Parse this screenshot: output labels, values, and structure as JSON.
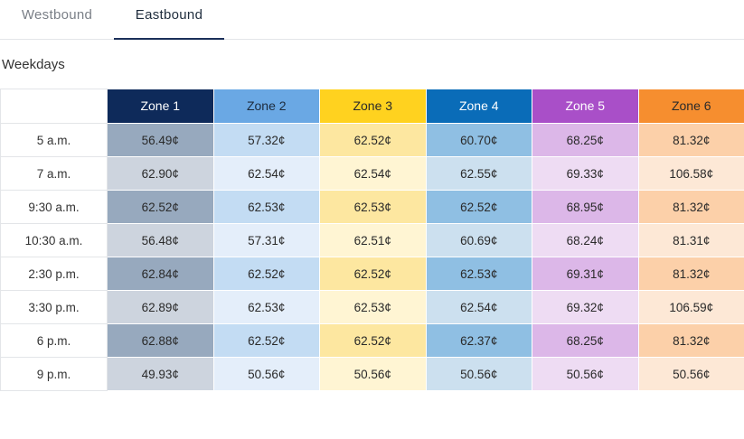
{
  "tabs": [
    {
      "label": "Westbound",
      "active": false
    },
    {
      "label": "Eastbound",
      "active": true
    }
  ],
  "section": {
    "title": "Weekdays"
  },
  "table": {
    "zones": [
      "Zone 1",
      "Zone 2",
      "Zone 3",
      "Zone 4",
      "Zone 5",
      "Zone 6"
    ],
    "zone_colors": [
      "#0e2a5a",
      "#6aa8e4",
      "#ffd21f",
      "#0a6cb8",
      "#a94fc8",
      "#f68e2f"
    ],
    "rows": [
      {
        "time": "5 a.m.",
        "fares": [
          "56.49¢",
          "57.32¢",
          "62.52¢",
          "60.70¢",
          "68.25¢",
          "81.32¢"
        ]
      },
      {
        "time": "7 a.m.",
        "fares": [
          "62.90¢",
          "62.54¢",
          "62.54¢",
          "62.55¢",
          "69.33¢",
          "106.58¢"
        ]
      },
      {
        "time": "9:30 a.m.",
        "fares": [
          "62.52¢",
          "62.53¢",
          "62.53¢",
          "62.52¢",
          "68.95¢",
          "81.32¢"
        ]
      },
      {
        "time": "10:30 a.m.",
        "fares": [
          "56.48¢",
          "57.31¢",
          "62.51¢",
          "60.69¢",
          "68.24¢",
          "81.31¢"
        ]
      },
      {
        "time": "2:30 p.m.",
        "fares": [
          "62.84¢",
          "62.52¢",
          "62.52¢",
          "62.53¢",
          "69.31¢",
          "81.32¢"
        ]
      },
      {
        "time": "3:30 p.m.",
        "fares": [
          "62.89¢",
          "62.53¢",
          "62.53¢",
          "62.54¢",
          "69.32¢",
          "106.59¢"
        ]
      },
      {
        "time": "6 p.m.",
        "fares": [
          "62.88¢",
          "62.52¢",
          "62.52¢",
          "62.37¢",
          "68.25¢",
          "81.32¢"
        ]
      },
      {
        "time": "9 p.m.",
        "fares": [
          "49.93¢",
          "50.56¢",
          "50.56¢",
          "50.56¢",
          "50.56¢",
          "50.56¢"
        ]
      }
    ]
  }
}
